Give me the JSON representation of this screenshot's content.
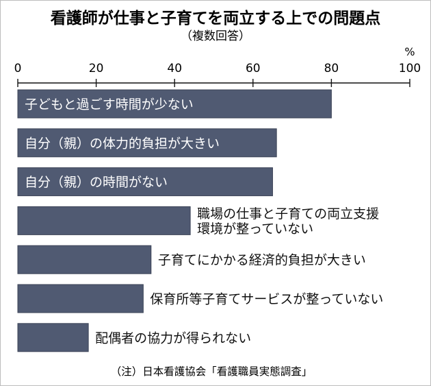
{
  "chart_data": {
    "type": "bar",
    "orientation": "horizontal",
    "title": "看護師が仕事と子育てを両立する上での問題点",
    "subtitle": "（複数回答）",
    "unit": "%",
    "xlim": [
      0,
      100
    ],
    "ticks": [
      "0",
      "20",
      "40",
      "60",
      "80",
      "100"
    ],
    "grid": false,
    "categories": [
      [
        "子どもと過ごす時間が少ない"
      ],
      [
        "自分（親）の体力的負担が大きい"
      ],
      [
        "自分（親）の時間がない"
      ],
      [
        "職場の仕事と子育ての両立支援",
        "環境が整っていない"
      ],
      [
        "子育てにかかる経済的負担が大きい"
      ],
      [
        "保育所等子育てサービスが整っていない"
      ],
      [
        "配偶者の協力が得られない"
      ]
    ],
    "values": [
      80,
      66,
      65,
      44,
      34,
      32,
      18
    ],
    "bar_color": "#505a72",
    "source": "（注）日本看護協会「看護職員実態調査」"
  }
}
